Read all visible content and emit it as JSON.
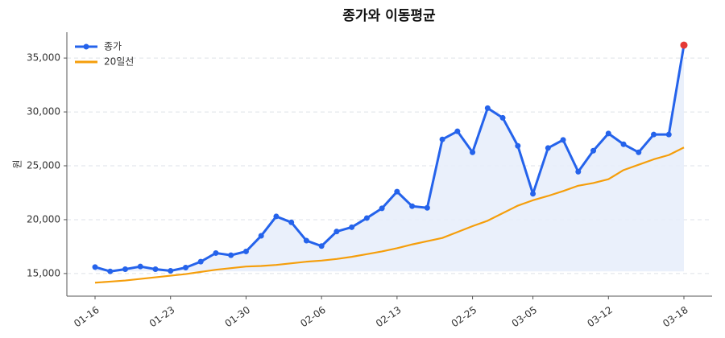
{
  "chart_data": {
    "type": "line",
    "title": "종가와 이동평균",
    "y_label": "원",
    "categories": [
      "01-16",
      null,
      null,
      null,
      null,
      "01-23",
      null,
      null,
      null,
      null,
      "01-30",
      null,
      null,
      null,
      null,
      "02-06",
      null,
      null,
      null,
      null,
      "02-13",
      null,
      null,
      null,
      null,
      "02-25",
      null,
      null,
      null,
      "03-05",
      null,
      null,
      null,
      null,
      "03-12",
      null,
      null,
      null,
      null,
      "03-18"
    ],
    "series": [
      {
        "name": "종가",
        "color": "#2563eb",
        "markers": true,
        "area_fill": "#e8eefb",
        "highlight_last_color": "#e53935",
        "values": [
          15600,
          15200,
          15400,
          15650,
          15400,
          15250,
          15550,
          16100,
          16900,
          16700,
          17050,
          18500,
          20300,
          19750,
          18050,
          17550,
          18900,
          19300,
          20150,
          21050,
          22600,
          21250,
          21100,
          27450,
          28200,
          26250,
          30350,
          29450,
          26850,
          22400,
          26650,
          27400,
          24450,
          26400,
          28000,
          27000,
          26250,
          27900,
          27900,
          36200
        ]
      },
      {
        "name": "20일선",
        "color": "#f59e0b",
        "markers": false,
        "values": [
          14150,
          14250,
          14350,
          14500,
          14650,
          14800,
          14950,
          15150,
          15350,
          15500,
          15650,
          15700,
          15800,
          15950,
          16100,
          16200,
          16350,
          16550,
          16800,
          17050,
          17350,
          17700,
          18000,
          18300,
          18850,
          19400,
          19900,
          20600,
          21300,
          21800,
          22200,
          22650,
          23150,
          23400,
          23750,
          24600,
          25100,
          25600,
          26000,
          26700
        ]
      }
    ],
    "ylim": [
      12900,
      37400
    ],
    "yticks": [
      {
        "value": 15000,
        "label": "15,000"
      },
      {
        "value": 20000,
        "label": "20,000"
      },
      {
        "value": 25000,
        "label": "25,000"
      },
      {
        "value": 30000,
        "label": "30,000"
      },
      {
        "value": 35000,
        "label": "35,000"
      }
    ],
    "grid": true,
    "legend": "top-left"
  }
}
